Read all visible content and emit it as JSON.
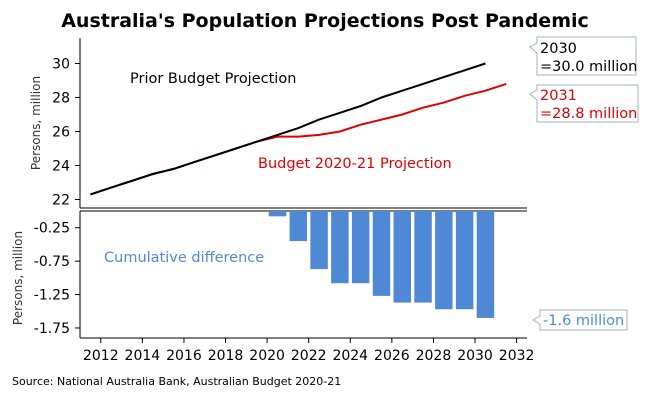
{
  "title": "Australia's Population Projections Post Pandemic",
  "source": "Source: National Australia Bank, Australian Budget 2020-21",
  "colors": {
    "prior": "#000000",
    "budget": "#e00000",
    "bars": "#4f89d6",
    "callout_border": "#9fb3c4"
  },
  "annotations": {
    "prior_label": "Prior Budget Projection",
    "budget_label": "Budget 2020-21 Projection",
    "diff_label": "Cumulative difference",
    "callout_prior_year": "2030",
    "callout_prior_value": "=30.0 million",
    "callout_budget_year": "2031",
    "callout_budget_value": "=28.8 million",
    "callout_diff": "-1.6 million"
  },
  "chart_data": [
    {
      "type": "line",
      "ylabel": "Persons, million",
      "ylim": [
        21.5,
        31.5
      ],
      "yticks": [
        "22",
        "24",
        "26",
        "28",
        "30"
      ],
      "grid": false,
      "series": [
        {
          "name": "Prior Budget Projection",
          "x": [
            2011.5,
            2012.5,
            2013.5,
            2014.5,
            2015.5,
            2016.5,
            2017.5,
            2018.5,
            2019.5,
            2020.5,
            2021.5,
            2022.5,
            2023.5,
            2024.5,
            2025.5,
            2026.5,
            2027.5,
            2028.5,
            2029.5,
            2030.5
          ],
          "values": [
            22.3,
            22.7,
            23.1,
            23.5,
            23.8,
            24.2,
            24.6,
            25.0,
            25.4,
            25.8,
            26.2,
            26.7,
            27.1,
            27.5,
            28.0,
            28.4,
            28.8,
            29.2,
            29.6,
            30.0
          ]
        },
        {
          "name": "Budget 2020-21 Projection",
          "x": [
            2011.5,
            2012.5,
            2013.5,
            2014.5,
            2015.5,
            2016.5,
            2017.5,
            2018.5,
            2019.5,
            2020.5,
            2021.5,
            2022.5,
            2023.5,
            2024.5,
            2025.5,
            2026.5,
            2027.5,
            2028.5,
            2029.5,
            2030.5,
            2031.5
          ],
          "values": [
            22.3,
            22.7,
            23.1,
            23.5,
            23.8,
            24.2,
            24.6,
            25.0,
            25.4,
            25.7,
            25.7,
            25.8,
            26.0,
            26.4,
            26.7,
            27.0,
            27.4,
            27.7,
            28.1,
            28.4,
            28.8
          ]
        }
      ]
    },
    {
      "type": "bar",
      "ylabel": "Persons, million",
      "ylim": [
        -1.9,
        0.0
      ],
      "yticks": [
        "-0.25",
        "-0.75",
        "-1.25",
        "-1.75"
      ],
      "xlim": [
        2011,
        2032.5
      ],
      "xticks": [
        "2012",
        "2014",
        "2016",
        "2018",
        "2020",
        "2022",
        "2024",
        "2026",
        "2028",
        "2030",
        "2032"
      ],
      "series": [
        {
          "name": "Cumulative difference",
          "x": [
            2020.5,
            2021.5,
            2022.5,
            2023.5,
            2024.5,
            2025.5,
            2026.5,
            2027.5,
            2028.5,
            2029.5,
            2030.5
          ],
          "values": [
            -0.08,
            -0.45,
            -0.87,
            -1.08,
            -1.08,
            -1.27,
            -1.37,
            -1.37,
            -1.47,
            -1.47,
            -1.6
          ]
        }
      ]
    }
  ]
}
